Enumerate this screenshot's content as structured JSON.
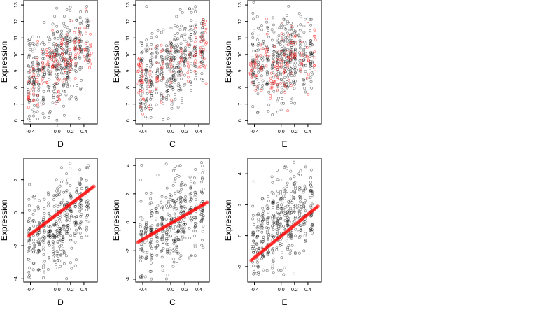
{
  "chart_data": [
    {
      "type": "scatter",
      "xlabel": "D",
      "ylabel": "Expression",
      "xlim": [
        -0.5,
        0.6
      ],
      "ylim": [
        5.8,
        13.3
      ],
      "xticks": [
        -0.4,
        0.0,
        0.2,
        0.4
      ],
      "xtick_labels": [
        "-0.4",
        "0.0",
        "0.2",
        "0.4"
      ],
      "yticks": [
        6,
        7,
        8,
        9,
        10,
        11,
        12,
        13
      ],
      "ytick_labels": [
        "6",
        "7",
        "8",
        "9",
        "10",
        "11",
        "12",
        "13"
      ],
      "series": [
        {
          "color": "#000000",
          "marker": "open-circle",
          "style": "points",
          "x_range": [
            -0.45,
            0.55
          ],
          "y_range": [
            6.0,
            13.1
          ],
          "n_points": 420
        },
        {
          "color": "#ff0000",
          "marker": "open-circle",
          "style": "points",
          "x": [
            -0.42,
            -0.36,
            -0.3,
            -0.22,
            -0.15,
            -0.08,
            -0.03,
            0.03,
            0.08,
            0.13,
            0.2,
            0.27,
            0.33,
            0.42,
            0.5
          ],
          "y": [
            7.6,
            7.9,
            8.6,
            9.0,
            9.4,
            9.8,
            9.6,
            8.5,
            10.0,
            9.5,
            9.9,
            10.4,
            10.8,
            10.3,
            10.6
          ]
        }
      ]
    },
    {
      "type": "scatter",
      "xlabel": "C",
      "ylabel": "Expression",
      "xlim": [
        -0.5,
        0.55
      ],
      "ylim": [
        5.8,
        13.3
      ],
      "xticks": [
        -0.4,
        0.0,
        0.2,
        0.4
      ],
      "xtick_labels": [
        "-0.4",
        "0.0",
        "0.2",
        "0.4"
      ],
      "yticks": [
        6,
        7,
        8,
        9,
        10,
        11,
        12,
        13
      ],
      "ytick_labels": [
        "6",
        "7",
        "8",
        "9",
        "10",
        "11",
        "12",
        "13"
      ],
      "series": [
        {
          "color": "#000000",
          "marker": "open-circle",
          "style": "points",
          "x_range": [
            -0.47,
            0.52
          ],
          "y_range": [
            6.0,
            13.0
          ],
          "n_points": 420
        },
        {
          "color": "#ff0000",
          "marker": "open-circle",
          "style": "points",
          "x": [
            -0.46,
            -0.42,
            -0.4,
            -0.3,
            -0.2,
            -0.12,
            0.0,
            0.15,
            0.25,
            0.35,
            0.42,
            0.47,
            0.5
          ],
          "y": [
            9.0,
            8.3,
            8.3,
            8.4,
            8.5,
            9.2,
            9.4,
            9.6,
            9.3,
            9.6,
            9.9,
            10.3,
            10.6
          ]
        }
      ]
    },
    {
      "type": "scatter",
      "xlabel": "E",
      "ylabel": "Expression",
      "xlim": [
        -0.5,
        0.6
      ],
      "ylim": [
        5.8,
        13.3
      ],
      "xticks": [
        -0.4,
        0.0,
        0.2,
        0.4
      ],
      "xtick_labels": [
        "-0.4",
        "0.0",
        "0.2",
        "0.4"
      ],
      "yticks": [
        6,
        7,
        8,
        9,
        10,
        11,
        12,
        13
      ],
      "ytick_labels": [
        "6",
        "7",
        "8",
        "9",
        "10",
        "11",
        "12",
        "13"
      ],
      "series": [
        {
          "color": "#000000",
          "marker": "open-circle",
          "style": "points",
          "x_range": [
            -0.45,
            0.55
          ],
          "y_range": [
            6.3,
            13.2
          ],
          "n_points": 420
        },
        {
          "color": "#ff0000",
          "marker": "open-circle",
          "style": "points",
          "x": [
            -0.45,
            -0.38,
            -0.3,
            -0.22,
            -0.15,
            -0.1,
            -0.05,
            0.0,
            0.05,
            0.1,
            0.15,
            0.2,
            0.3,
            0.4,
            0.5
          ],
          "y": [
            9.3,
            9.4,
            9.2,
            10.2,
            8.4,
            8.3,
            8.6,
            9.6,
            9.0,
            9.3,
            9.8,
            9.9,
            9.6,
            9.5,
            9.8
          ]
        }
      ]
    },
    {
      "type": "scatter",
      "xlabel": "D",
      "ylabel": "Expression",
      "xlim": [
        -0.5,
        0.6
      ],
      "ylim": [
        -4.2,
        3.3
      ],
      "xticks": [
        -0.4,
        0.0,
        0.2,
        0.4
      ],
      "xtick_labels": [
        "-0.4",
        "0.0",
        "0.2",
        "0.4"
      ],
      "yticks": [
        -4,
        -2,
        0,
        2
      ],
      "ytick_labels": [
        "-4",
        "-2",
        "0",
        "2"
      ],
      "series": [
        {
          "color": "#000000",
          "marker": "open-circle",
          "style": "points",
          "x_range": [
            -0.45,
            0.55
          ],
          "y_range": [
            -4.0,
            3.0
          ],
          "n_points": 420
        },
        {
          "color": "#ff0000",
          "marker": "filled-circle",
          "style": "fitted-line",
          "x": [
            -0.43,
            0.55
          ],
          "y": [
            -1.4,
            1.6
          ]
        }
      ]
    },
    {
      "type": "scatter",
      "xlabel": "C",
      "ylabel": "Expression",
      "xlim": [
        -0.5,
        0.55
      ],
      "ylim": [
        -4.2,
        4.5
      ],
      "xticks": [
        -0.4,
        0.0,
        0.2,
        0.4
      ],
      "xtick_labels": [
        "-0.4",
        "0.0",
        "0.2",
        "0.4"
      ],
      "yticks": [
        -4,
        -2,
        0,
        2,
        4
      ],
      "ytick_labels": [
        "-4",
        "-2",
        "0",
        "2",
        "4"
      ],
      "series": [
        {
          "color": "#000000",
          "marker": "open-circle",
          "style": "points",
          "x_range": [
            -0.47,
            0.52
          ],
          "y_range": [
            -4.0,
            4.2
          ],
          "n_points": 420
        },
        {
          "color": "#ff0000",
          "marker": "filled-circle",
          "style": "fitted-line",
          "x": [
            -0.47,
            0.52
          ],
          "y": [
            -1.4,
            1.4
          ]
        }
      ]
    },
    {
      "type": "scatter",
      "xlabel": "E",
      "ylabel": "Expression",
      "xlim": [
        -0.5,
        0.6
      ],
      "ylim": [
        -3.0,
        5.0
      ],
      "xticks": [
        -0.4,
        0.0,
        0.2,
        0.4
      ],
      "xtick_labels": [
        "-0.4",
        "0.0",
        "0.2",
        "0.4"
      ],
      "yticks": [
        -2,
        0,
        2,
        4
      ],
      "ytick_labels": [
        "-2",
        "0",
        "2",
        "4"
      ],
      "series": [
        {
          "color": "#000000",
          "marker": "open-circle",
          "style": "points",
          "x_range": [
            -0.45,
            0.58
          ],
          "y_range": [
            -2.6,
            4.8
          ],
          "n_points": 420
        },
        {
          "color": "#ff0000",
          "marker": "filled-circle",
          "style": "fitted-line",
          "x": [
            -0.45,
            0.55
          ],
          "y": [
            -1.6,
            1.9
          ]
        }
      ]
    }
  ]
}
